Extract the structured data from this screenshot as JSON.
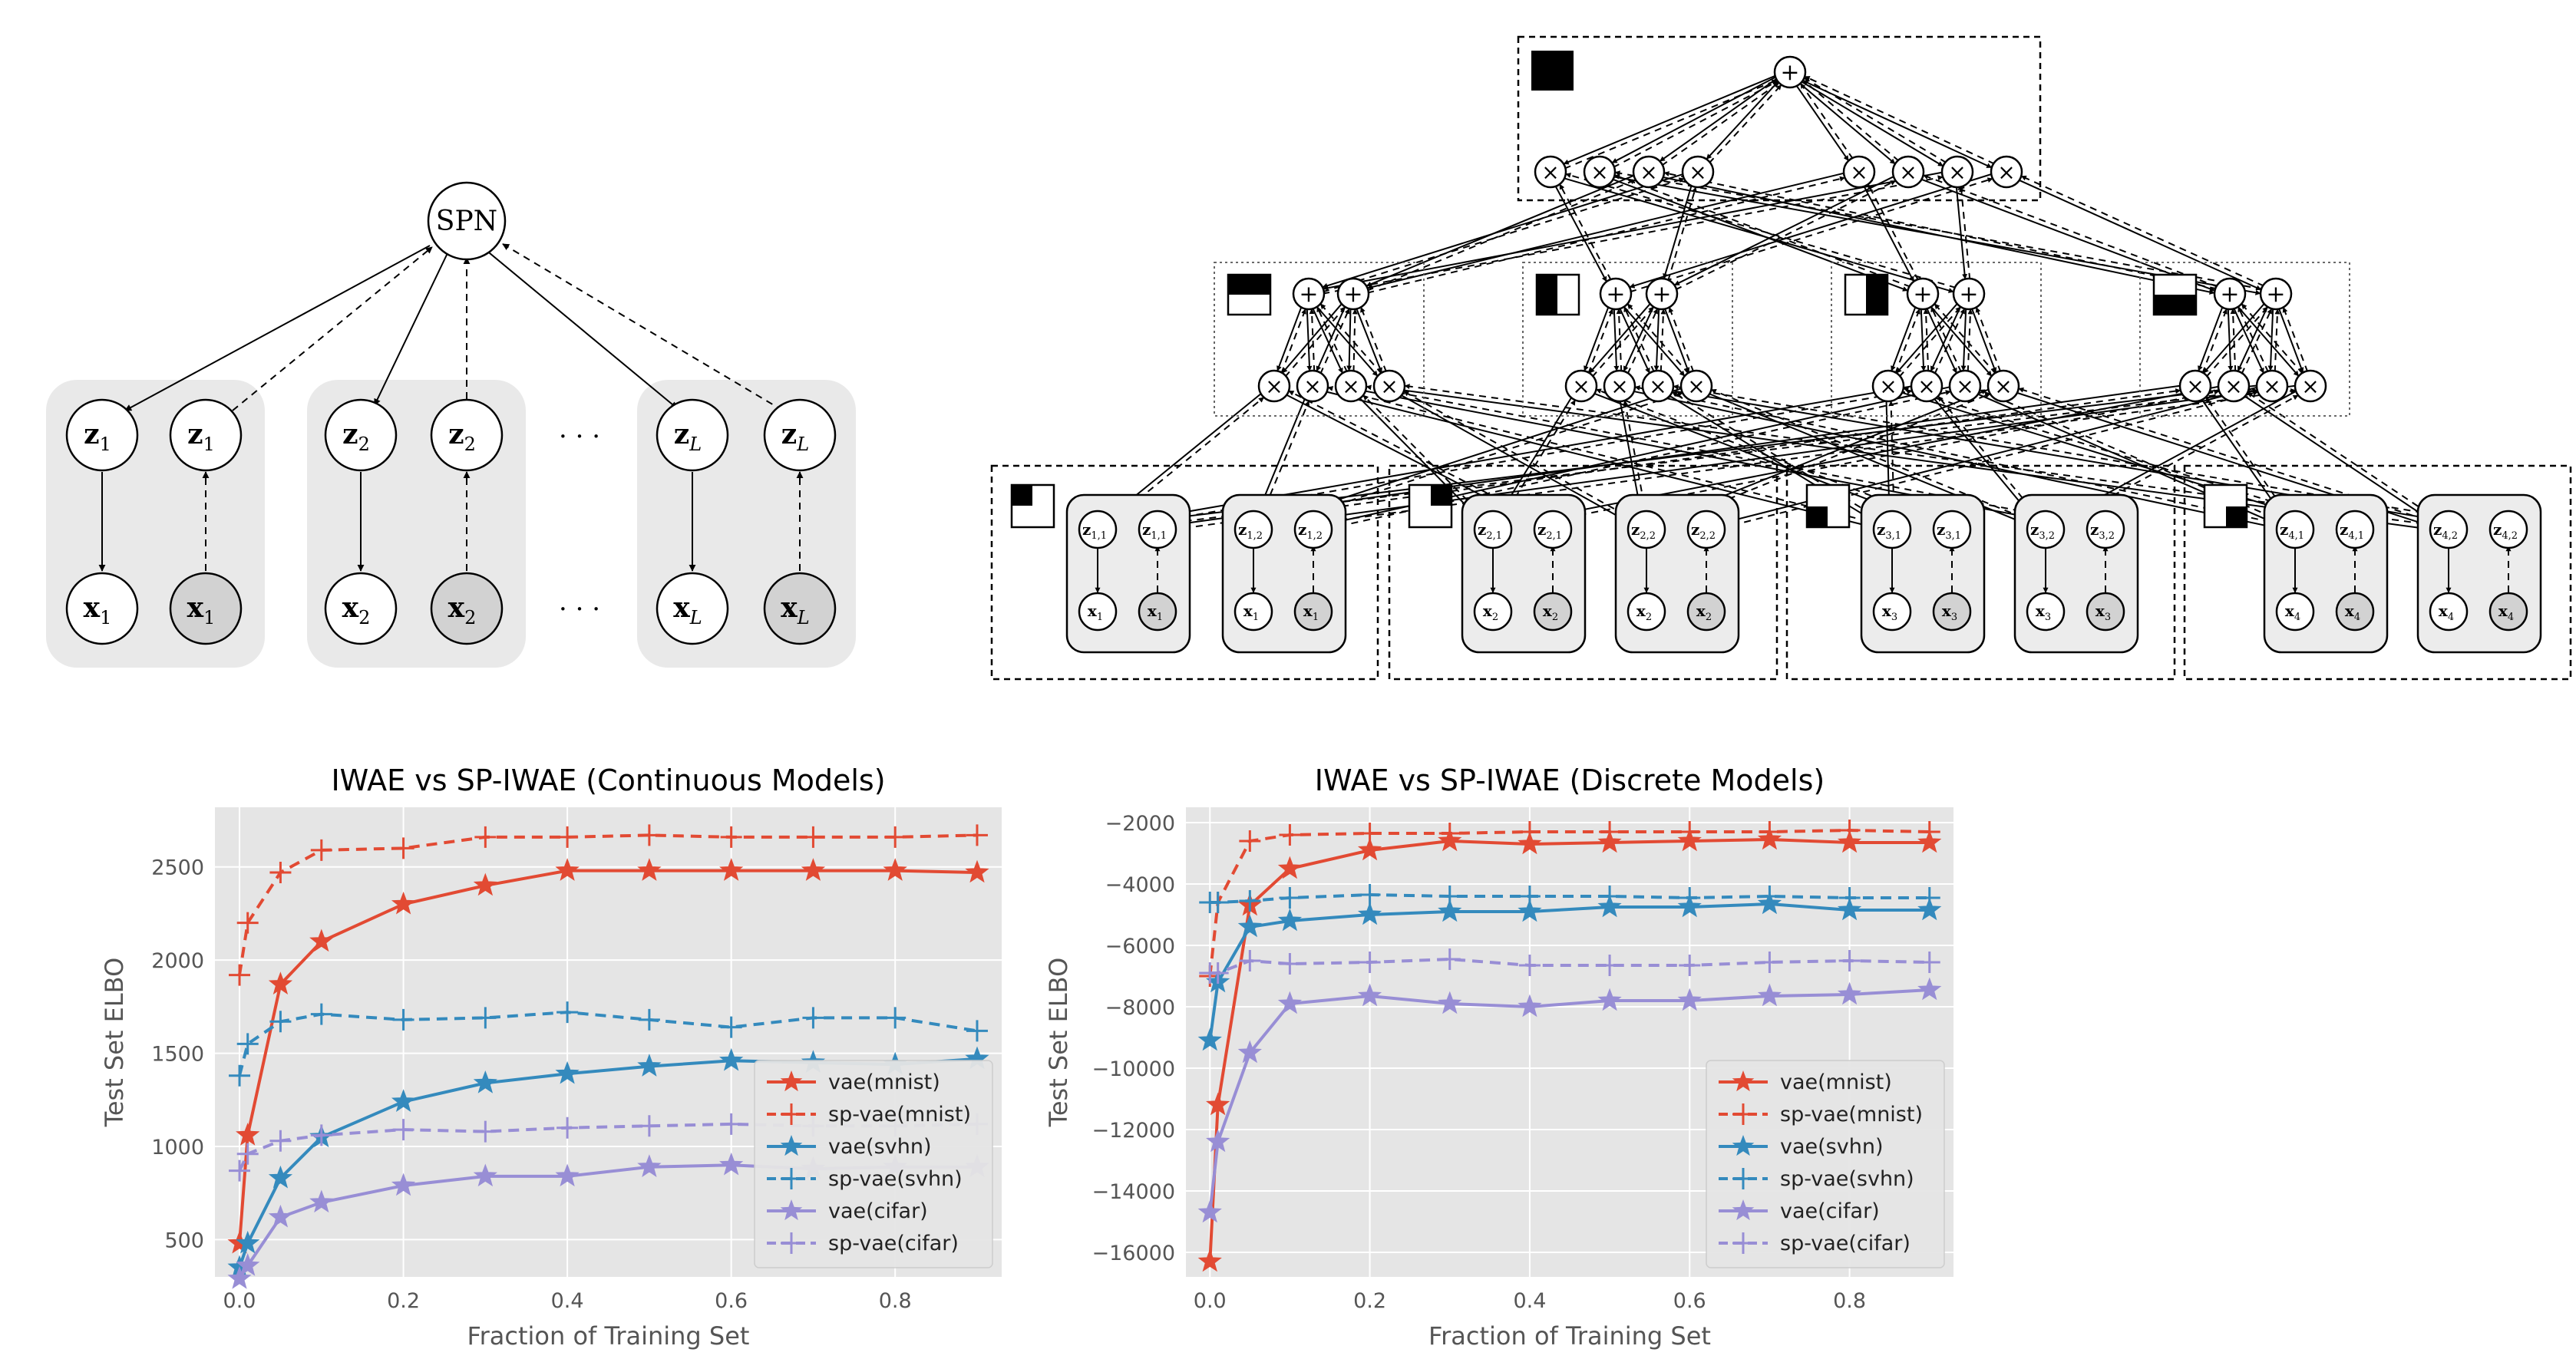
{
  "diagram_left": {
    "spn_label": "SPN",
    "dots": "· · ·",
    "groups": [
      {
        "z": "z",
        "x": "x",
        "sub": "1"
      },
      {
        "z": "z",
        "x": "x",
        "sub": "2"
      },
      {
        "z": "z",
        "x": "x",
        "sub": "L"
      }
    ]
  },
  "diagram_right": {
    "sum_symbol": "+",
    "product_symbol": "×",
    "leaf_groups": [
      {
        "z": "z",
        "x": "x",
        "i": "1",
        "j_a": "1",
        "j_b": "2"
      },
      {
        "z": "z",
        "x": "x",
        "i": "2",
        "j_a": "1",
        "j_b": "2"
      },
      {
        "z": "z",
        "x": "x",
        "i": "3",
        "j_a": "1",
        "j_b": "2"
      },
      {
        "z": "z",
        "x": "x",
        "i": "4",
        "j_a": "1",
        "j_b": "2"
      }
    ]
  },
  "chart_data": [
    {
      "type": "line",
      "title": "IWAE vs SP-IWAE (Continuous Models)",
      "xlabel": "Fraction of Training Set",
      "ylabel": "Test Set ELBO",
      "xlim": [
        -0.03,
        0.93
      ],
      "ylim": [
        300,
        2820
      ],
      "xticks": [
        0.0,
        0.2,
        0.4,
        0.6,
        0.8
      ],
      "xtick_labels": [
        "0.0",
        "0.2",
        "0.4",
        "0.6",
        "0.8"
      ],
      "yticks": [
        500,
        1000,
        1500,
        2000,
        2500
      ],
      "ytick_labels": [
        "500",
        "1000",
        "1500",
        "2000",
        "2500"
      ],
      "grid": true,
      "legend_position": "lower-right",
      "x": [
        0.0,
        0.01,
        0.05,
        0.1,
        0.2,
        0.3,
        0.4,
        0.5,
        0.6,
        0.7,
        0.8,
        0.9
      ],
      "series": [
        {
          "name": "vae(mnist)",
          "color": "#e24a33",
          "style": "solid",
          "marker": "star",
          "values": [
            480,
            1060,
            1870,
            2100,
            2300,
            2400,
            2480,
            2480,
            2480,
            2480,
            2480,
            2470
          ]
        },
        {
          "name": "sp-vae(mnist)",
          "color": "#e24a33",
          "style": "dashed",
          "marker": "plus",
          "values": [
            1920,
            2200,
            2470,
            2590,
            2600,
            2660,
            2660,
            2670,
            2660,
            2660,
            2660,
            2670
          ]
        },
        {
          "name": "vae(svhn)",
          "color": "#348abd",
          "style": "solid",
          "marker": "star",
          "values": [
            350,
            480,
            830,
            1050,
            1240,
            1340,
            1390,
            1430,
            1460,
            1450,
            1440,
            1470
          ]
        },
        {
          "name": "sp-vae(svhn)",
          "color": "#348abd",
          "style": "dashed",
          "marker": "plus",
          "values": [
            1380,
            1550,
            1670,
            1710,
            1680,
            1690,
            1720,
            1680,
            1640,
            1690,
            1690,
            1620
          ]
        },
        {
          "name": "vae(cifar)",
          "color": "#988ed5",
          "style": "solid",
          "marker": "star",
          "values": [
            290,
            360,
            620,
            700,
            790,
            840,
            840,
            890,
            900,
            880,
            890,
            890
          ]
        },
        {
          "name": "sp-vae(cifar)",
          "color": "#988ed5",
          "style": "dashed",
          "marker": "plus",
          "values": [
            870,
            960,
            1030,
            1060,
            1090,
            1080,
            1100,
            1110,
            1120,
            1110,
            1110,
            1120
          ]
        }
      ]
    },
    {
      "type": "line",
      "title": "IWAE vs SP-IWAE (Discrete Models)",
      "xlabel": "Fraction of Training Set",
      "ylabel": "Test Set ELBO",
      "xlim": [
        -0.03,
        0.93
      ],
      "ylim": [
        -16800,
        -1500
      ],
      "xticks": [
        0.0,
        0.2,
        0.4,
        0.6,
        0.8
      ],
      "xtick_labels": [
        "0.0",
        "0.2",
        "0.4",
        "0.6",
        "0.8"
      ],
      "yticks": [
        -16000,
        -14000,
        -12000,
        -10000,
        -8000,
        -6000,
        -4000,
        -2000
      ],
      "ytick_labels": [
        "−16000",
        "−14000",
        "−12000",
        "−10000",
        "−8000",
        "−6000",
        "−4000",
        "−2000"
      ],
      "grid": true,
      "legend_position": "lower-right",
      "x": [
        0.0,
        0.01,
        0.05,
        0.1,
        0.2,
        0.3,
        0.4,
        0.5,
        0.6,
        0.7,
        0.8,
        0.9
      ],
      "series": [
        {
          "name": "vae(mnist)",
          "color": "#e24a33",
          "style": "solid",
          "marker": "star",
          "values": [
            -16300,
            -11200,
            -4700,
            -3500,
            -2900,
            -2600,
            -2700,
            -2650,
            -2600,
            -2550,
            -2650,
            -2650
          ]
        },
        {
          "name": "sp-vae(mnist)",
          "color": "#e24a33",
          "style": "dashed",
          "marker": "plus",
          "values": [
            -7000,
            -4600,
            -2600,
            -2400,
            -2350,
            -2350,
            -2300,
            -2300,
            -2300,
            -2300,
            -2250,
            -2300
          ]
        },
        {
          "name": "vae(svhn)",
          "color": "#348abd",
          "style": "solid",
          "marker": "star",
          "values": [
            -9100,
            -7200,
            -5400,
            -5200,
            -5000,
            -4900,
            -4900,
            -4750,
            -4750,
            -4650,
            -4850,
            -4850
          ]
        },
        {
          "name": "sp-vae(svhn)",
          "color": "#348abd",
          "style": "dashed",
          "marker": "plus",
          "values": [
            -4600,
            -4600,
            -4550,
            -4450,
            -4350,
            -4400,
            -4400,
            -4400,
            -4450,
            -4400,
            -4450,
            -4450
          ]
        },
        {
          "name": "vae(cifar)",
          "color": "#988ed5",
          "style": "solid",
          "marker": "star",
          "values": [
            -14700,
            -12400,
            -9500,
            -7900,
            -7650,
            -7900,
            -8000,
            -7800,
            -7800,
            -7650,
            -7600,
            -7450
          ]
        },
        {
          "name": "sp-vae(cifar)",
          "color": "#988ed5",
          "style": "dashed",
          "marker": "plus",
          "values": [
            -6900,
            -6900,
            -6500,
            -6600,
            -6550,
            -6450,
            -6650,
            -6650,
            -6650,
            -6550,
            -6500,
            -6550
          ]
        }
      ]
    }
  ]
}
